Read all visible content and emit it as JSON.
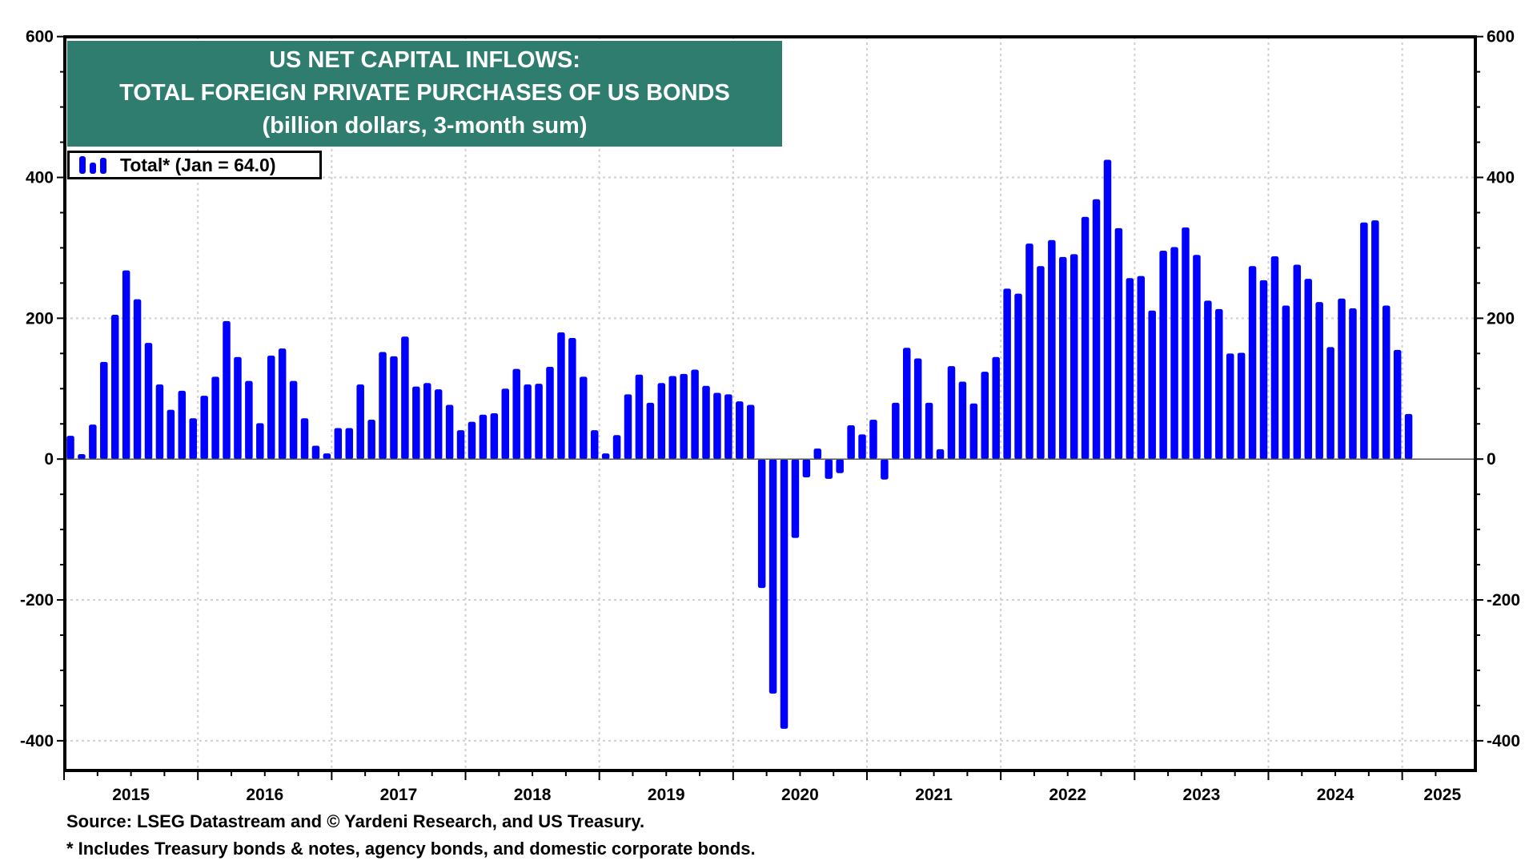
{
  "chart_data": {
    "type": "bar",
    "title": "US NET CAPITAL INFLOWS:",
    "title_lines": [
      "US NET CAPITAL INFLOWS:",
      "TOTAL  FOREIGN PRIVATE PURCHASES OF US BONDS",
      "(billion dollars, 3-month sum)"
    ],
    "xlabel": "",
    "ylabel": "",
    "ylim": [
      -445,
      600
    ],
    "yticks": [
      600,
      400,
      200,
      0,
      -200,
      -400
    ],
    "ytick_labels": [
      "600",
      "400",
      "200",
      "0",
      "-200",
      "-400"
    ],
    "y_axis_sides": [
      "left",
      "right"
    ],
    "grid": true,
    "x_start": "2015-01",
    "x_end": "2025-01",
    "frequency": "monthly",
    "xtick_labels": [
      "2015",
      "2016",
      "2017",
      "2018",
      "2019",
      "2020",
      "2021",
      "2022",
      "2023",
      "2024",
      "2025"
    ],
    "bar_color": "#0000ff",
    "legend": {
      "label": "Total* (Jan = 64.0)",
      "placement": "top-left"
    },
    "series": [
      {
        "name": "Total*",
        "values": [
          33,
          7,
          49,
          138,
          205,
          268,
          227,
          165,
          106,
          70,
          97,
          58,
          90,
          117,
          196,
          145,
          111,
          51,
          147,
          157,
          111,
          58,
          19,
          8,
          44,
          44,
          106,
          56,
          152,
          146,
          174,
          103,
          108,
          99,
          77,
          41,
          53,
          63,
          65,
          100,
          128,
          106,
          107,
          131,
          180,
          172,
          117,
          41,
          8,
          34,
          92,
          120,
          80,
          108,
          118,
          121,
          127,
          104,
          94,
          92,
          82,
          77,
          -183,
          -333,
          -383,
          -112,
          -26,
          15,
          -28,
          -20,
          48,
          35,
          56,
          -29,
          80,
          158,
          143,
          80,
          14,
          132,
          110,
          79,
          124,
          145,
          242,
          235,
          306,
          274,
          311,
          287,
          291,
          344,
          369,
          425,
          328,
          257,
          260,
          211,
          296,
          301,
          329,
          290,
          225,
          213,
          150,
          151,
          274,
          254,
          288,
          218,
          276,
          256,
          223,
          159,
          228,
          214,
          336,
          339,
          218,
          155,
          64
        ]
      }
    ]
  },
  "footer": {
    "source": "Source: LSEG Datastream and © Yardeni Research, and US Treasury.",
    "note": "* Includes Treasury bonds & notes, agency bonds, and domestic corporate bonds."
  }
}
